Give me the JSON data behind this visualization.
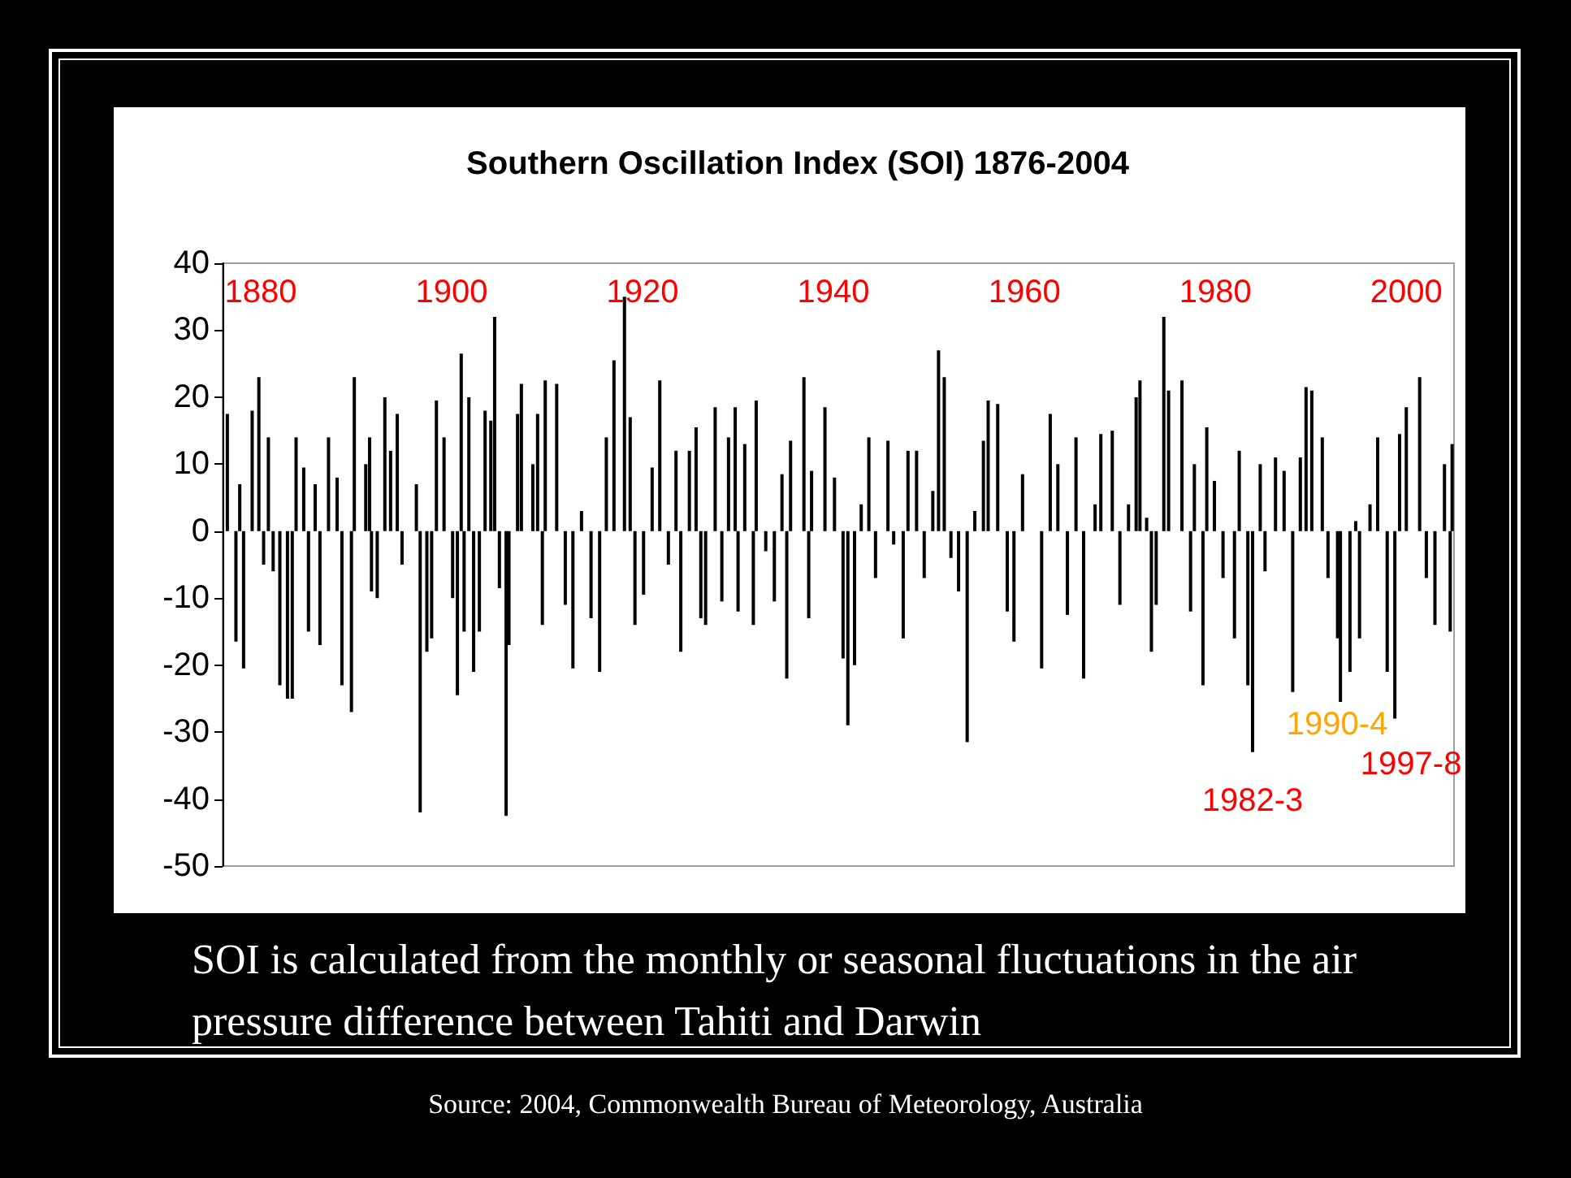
{
  "chart_data": {
    "type": "bar",
    "title": "Southern Oscillation Index (SOI) 1876-2004",
    "color": "#000000",
    "x": [
      1876.5,
      1877.4,
      1877.8,
      1878.2,
      1879.1,
      1879.8,
      1880.3,
      1880.8,
      1881.3,
      1882,
      1882.8,
      1883.3,
      1883.7,
      1884.5,
      1885,
      1885.7,
      1886.2,
      1887.1,
      1888,
      1888.5,
      1889.5,
      1889.8,
      1891,
      1891.4,
      1891.6,
      1892.2,
      1893,
      1893.6,
      1894.3,
      1894.8,
      1896.3,
      1896.7,
      1897.4,
      1897.9,
      1898.4,
      1899.2,
      1900.1,
      1900.6,
      1901,
      1901.3,
      1901.8,
      1902.3,
      1902.9,
      1903.5,
      1904.1,
      1904.5,
      1905,
      1905.7,
      1906,
      1906.9,
      1907.3,
      1908.5,
      1909,
      1909.5,
      1909.8,
      1911,
      1911.9,
      1912.7,
      1913.6,
      1914.6,
      1915.5,
      1916.2,
      1917,
      1918.1,
      1918.7,
      1919.2,
      1920.1,
      1921,
      1921.8,
      1922.7,
      1923.5,
      1924,
      1924.9,
      1925.6,
      1926.1,
      1926.6,
      1927.6,
      1928.3,
      1929,
      1929.7,
      1930,
      1930.7,
      1931.6,
      1931.9,
      1932.9,
      1933.8,
      1934.6,
      1935.1,
      1935.5,
      1936.9,
      1937.4,
      1937.7,
      1939.1,
      1940.1,
      1941,
      1941.5,
      1942.2,
      1942.9,
      1943.7,
      1944.4,
      1945.7,
      1946.3,
      1947.3,
      1947.8,
      1948.7,
      1949.5,
      1950.4,
      1951,
      1951.6,
      1952.3,
      1953.1,
      1954,
      1954.8,
      1955.7,
      1956.2,
      1957.2,
      1958.2,
      1958.9,
      1959.8,
      1961.8,
      1962.7,
      1963.5,
      1964.5,
      1965.4,
      1966.2,
      1967.4,
      1968,
      1969.2,
      1970,
      1970.9,
      1971.7,
      1972.1,
      1972.8,
      1973.3,
      1973.8,
      1974.6,
      1975.1,
      1976.5,
      1977.4,
      1977.8,
      1978.7,
      1979.1,
      1979.9,
      1980.8,
      1982,
      1982.5,
      1983.4,
      1983.9,
      1984.7,
      1985.2,
      1986.3,
      1987.2,
      1988.1,
      1988.9,
      1989.5,
      1990.1,
      1991.2,
      1991.8,
      1992.8,
      1993.1,
      1994.1,
      1994.7,
      1995.1,
      1996.2,
      1997,
      1998,
      1998.8,
      1999.3,
      2000,
      2001.4,
      2002.1,
      2003,
      2004,
      2004.6,
      2004.8
    ],
    "values": [
      17.5,
      -16.5,
      7,
      -20.5,
      18,
      23,
      -5,
      14,
      -6,
      -23,
      -25,
      -25,
      14,
      9.5,
      -15,
      7,
      -17,
      14,
      8,
      -23,
      -27,
      23,
      10,
      14,
      -9,
      -10,
      20,
      12,
      17.5,
      -5,
      7,
      -42,
      -18,
      -16,
      19.5,
      14,
      -10,
      -24.5,
      26.5,
      -15,
      20,
      -21,
      -15,
      18,
      16.5,
      32,
      -8.5,
      -42.5,
      -17,
      17.5,
      22,
      10,
      17.5,
      -14,
      22.5,
      22,
      -11,
      -20.5,
      3,
      -13,
      -21,
      14,
      25.5,
      35,
      17,
      -14,
      -9.5,
      9.5,
      22.5,
      -5,
      12,
      -18,
      12,
      15.5,
      -13,
      -14,
      18.5,
      -10.5,
      14,
      18.5,
      -12,
      13,
      -14,
      19.5,
      -3,
      -10.5,
      8.5,
      -22,
      13.5,
      23,
      -13,
      9,
      18.5,
      8,
      -19,
      -29,
      -20,
      4,
      14,
      -7,
      13.5,
      -2,
      -16,
      12,
      12,
      -7,
      6,
      27,
      23,
      -4,
      -9,
      -31.5,
      3,
      13.5,
      19.5,
      19,
      -12,
      -16.5,
      8.5,
      -20.5,
      17.5,
      10,
      -12.5,
      14,
      -22,
      4,
      14.5,
      15,
      -11,
      4,
      20,
      22.5,
      2,
      -18,
      -11,
      32,
      21,
      22.5,
      -12,
      10,
      -23,
      15.5,
      7.5,
      -7,
      -16,
      12,
      -23,
      -33,
      10,
      -6,
      11,
      9,
      -24,
      11,
      21.5,
      21,
      14,
      -7,
      -16,
      -25.5,
      -21,
      1.5,
      -16,
      4,
      14,
      -21,
      -28,
      14.5,
      18.5,
      23,
      -7,
      -14,
      10,
      -15,
      13
    ],
    "xlim": [
      1876,
      2005
    ],
    "xticks": [
      1880,
      1900,
      1920,
      1940,
      1960,
      1980,
      2000
    ],
    "ylim": [
      -50,
      40
    ],
    "yticks": [
      -50,
      -40,
      -30,
      -20,
      -10,
      0,
      10,
      20,
      30,
      40
    ],
    "grid": false,
    "annotations": [
      {
        "text": "1982-3",
        "x": 1983.9,
        "y": -33
      },
      {
        "text": "1990-4",
        "x": 1993.1,
        "y": -25.5
      },
      {
        "text": "1997-8",
        "x": 1998.8,
        "y": -28
      },
      "SOI is calculated from the monthly or seasonal fluctuations in the air pressure difference between Tahiti and Darwin",
      "Source: 2004, Commonwealth Bureau of Meteorology, Australia"
    ]
  }
}
